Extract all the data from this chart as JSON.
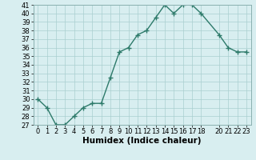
{
  "x": [
    0,
    1,
    2,
    3,
    4,
    5,
    6,
    7,
    8,
    9,
    10,
    11,
    12,
    13,
    14,
    15,
    16,
    17,
    18,
    20,
    21,
    22,
    23
  ],
  "y": [
    30,
    29,
    27,
    27,
    28,
    29,
    29.5,
    29.5,
    32.5,
    35.5,
    36,
    37.5,
    38,
    39.5,
    41,
    40,
    41,
    41,
    40,
    37.5,
    36,
    35.5,
    35.5
  ],
  "line_color": "#2d7a6a",
  "marker": "+",
  "bg_color": "#d8eef0",
  "grid_color": "#aacfcf",
  "xlabel": "Humidex (Indice chaleur)",
  "ylim_min": 27,
  "ylim_max": 41,
  "xlim_min": -0.5,
  "xlim_max": 23.5,
  "yticks": [
    27,
    28,
    29,
    30,
    31,
    32,
    33,
    34,
    35,
    36,
    37,
    38,
    39,
    40,
    41
  ],
  "xtick_labels": [
    "0",
    "1",
    "2",
    "3",
    "4",
    "5",
    "6",
    "7",
    "8",
    "9",
    "1011",
    "1213",
    "1415",
    "1617",
    "18",
    "",
    "2021",
    "2223"
  ],
  "tick_fontsize": 6,
  "xlabel_fontsize": 7.5,
  "linewidth": 1.0,
  "markersize": 4,
  "markeredgewidth": 1.0
}
